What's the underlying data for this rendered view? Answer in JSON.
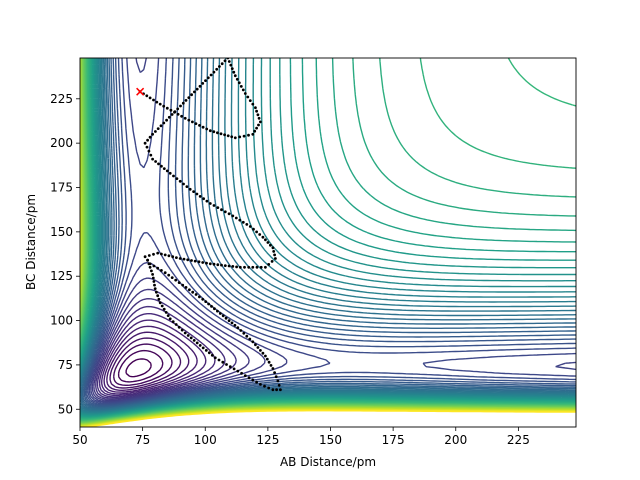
{
  "chart_data": {
    "type": "contour",
    "title": "",
    "xlabel": "AB Distance/pm",
    "ylabel": "BC Distance/pm",
    "xlim": [
      50,
      248
    ],
    "ylim": [
      40,
      248
    ],
    "xticks": [
      50,
      75,
      100,
      125,
      150,
      175,
      200,
      225
    ],
    "yticks": [
      50,
      75,
      100,
      125,
      150,
      175,
      200,
      225
    ],
    "grid": false,
    "legend": "none",
    "colormap": "viridis",
    "contour_level_count": 60,
    "colormap_stops": [
      "#440154",
      "#482878",
      "#3e4989",
      "#31688e",
      "#26828e",
      "#1f9e89",
      "#35b779",
      "#6ece58",
      "#b5de2b",
      "#fde725"
    ],
    "start_marker": {
      "x": 74,
      "y": 229,
      "symbol": "x",
      "color": "#ff0000"
    },
    "trajectory": [
      [
        74,
        229
      ],
      [
        82,
        222
      ],
      [
        92,
        214
      ],
      [
        102,
        207
      ],
      [
        112,
        203
      ],
      [
        119,
        205
      ],
      [
        122,
        212
      ],
      [
        120,
        220
      ],
      [
        116,
        228
      ],
      [
        112,
        238
      ],
      [
        109,
        248
      ],
      [
        79,
        205
      ],
      [
        76,
        200
      ],
      [
        79,
        191
      ],
      [
        86,
        183
      ],
      [
        94,
        174
      ],
      [
        102,
        166
      ],
      [
        111,
        159
      ],
      [
        118,
        153
      ],
      [
        123,
        147
      ],
      [
        127,
        141
      ],
      [
        128,
        135
      ],
      [
        124,
        130
      ],
      [
        114,
        130
      ],
      [
        102,
        132
      ],
      [
        90,
        135
      ],
      [
        81,
        138
      ],
      [
        76,
        136
      ],
      [
        78,
        132
      ],
      [
        84,
        127
      ],
      [
        91,
        120
      ],
      [
        99,
        112
      ],
      [
        106,
        104
      ],
      [
        113,
        96
      ],
      [
        119,
        88
      ],
      [
        124,
        80
      ],
      [
        127,
        73
      ],
      [
        129,
        66
      ],
      [
        130,
        61
      ],
      [
        127,
        61
      ],
      [
        122,
        64
      ],
      [
        116,
        69
      ],
      [
        110,
        74
      ],
      [
        104,
        79
      ],
      [
        98,
        86
      ],
      [
        92,
        93
      ],
      [
        86,
        101
      ],
      [
        82,
        110
      ],
      [
        80,
        118
      ],
      [
        79,
        126
      ],
      [
        77,
        134
      ],
      [
        76,
        136
      ]
    ]
  }
}
